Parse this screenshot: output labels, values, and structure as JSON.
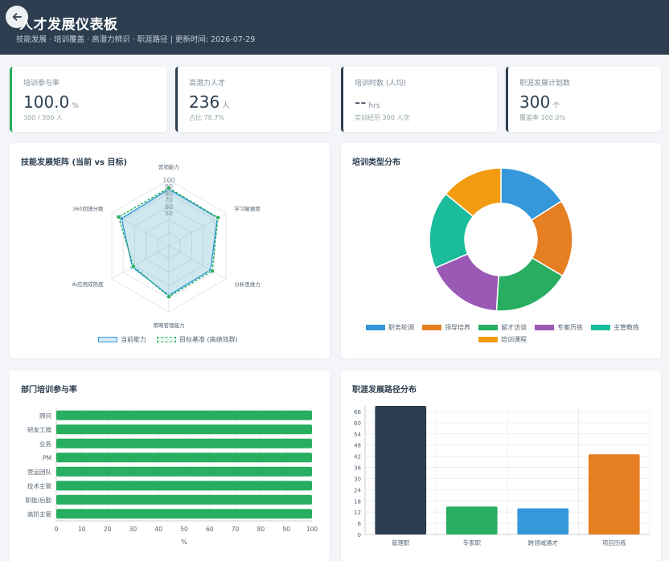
{
  "header": {
    "title": "人才发展仪表板",
    "subtitle": "技能发展 · 培训覆盖 · 高潜力辨识 · 职涯路径 | 更新时间: 2026-07-29"
  },
  "kpis": [
    {
      "label": "培训参与率",
      "value": "100.0",
      "unit": "%",
      "note": "300 / 300 人",
      "accent": "#27ae60"
    },
    {
      "label": "高潜力人才",
      "value": "236",
      "unit": "人",
      "note": "占比 78.7%",
      "accent": "#2c3e50"
    },
    {
      "label": "培训时数 (人均)",
      "value": "--",
      "unit": "hrs",
      "note": "实训经历 300 人次",
      "accent": "#2c3e50"
    },
    {
      "label": "职涯发展计划数",
      "value": "300",
      "unit": "个",
      "note": "覆盖率 100.0%",
      "accent": "#2c3e50"
    }
  ],
  "radar": {
    "title": "技能发展矩阵 (当前 vs 目标)",
    "chart_data": {
      "type": "radar",
      "axes": [
        "营销能力",
        "学习敏捷度",
        "分析思维力",
        "策略管理能力",
        "AI应用成熟度",
        "360回馈分数"
      ],
      "scale": [
        50,
        60,
        70,
        80,
        90,
        100
      ],
      "series": [
        {
          "name": "当前能力",
          "values": [
            86,
            85,
            73,
            75,
            64,
            83
          ],
          "color": "#3498db"
        },
        {
          "name": "目标基准 (高绩效群)",
          "values": [
            88,
            86,
            76,
            77,
            62,
            88
          ],
          "color": "#27ae60"
        }
      ]
    }
  },
  "donut": {
    "title": "培训类型分布",
    "chart_data": {
      "type": "pie",
      "categories": [
        "职务轮调",
        "领导培养",
        "留才访谈",
        "专案历练",
        "主管教练",
        "培训课程"
      ],
      "values": [
        16,
        17.5,
        17.5,
        17.5,
        17.5,
        14
      ],
      "colors": [
        "#3498db",
        "#e67e22",
        "#27ae60",
        "#9b59b6",
        "#1abc9c",
        "#f39c12"
      ]
    }
  },
  "dept": {
    "title": "部门培训参与率",
    "chart_data": {
      "type": "bar",
      "orientation": "horizontal",
      "categories": [
        "顾问",
        "研发工程",
        "业务",
        "PM",
        "营运团队",
        "技术主管",
        "职能/后勤",
        "高阶主管"
      ],
      "values": [
        100,
        100,
        100,
        100,
        100,
        100,
        100,
        100
      ],
      "xticks": [
        0,
        10,
        20,
        30,
        40,
        50,
        60,
        70,
        80,
        90,
        100
      ],
      "xlabel": "%",
      "xlim": [
        0,
        100
      ],
      "color": "#27ae60"
    }
  },
  "career": {
    "title": "职涯发展路径分布",
    "chart_data": {
      "type": "bar",
      "categories": [
        "管理职",
        "专家职",
        "跨领域通才",
        "项目历练"
      ],
      "values": [
        69,
        15,
        14,
        43
      ],
      "colors": [
        "#2c3e50",
        "#27ae60",
        "#3498db",
        "#e67e22"
      ],
      "yticks": [
        0,
        6,
        12,
        18,
        24,
        30,
        36,
        42,
        48,
        54,
        60,
        66
      ],
      "ylim": [
        0,
        69
      ]
    }
  }
}
